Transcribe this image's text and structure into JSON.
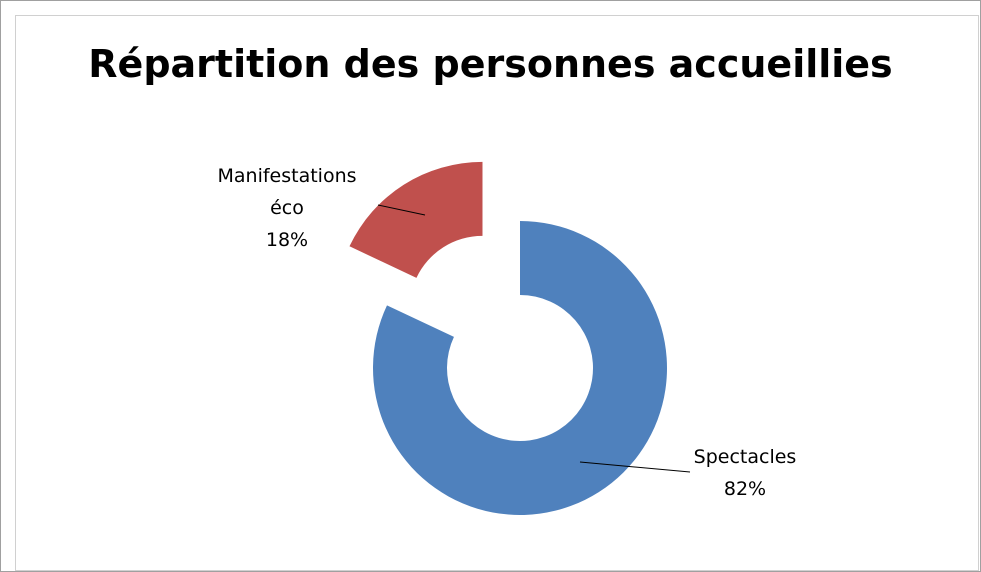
{
  "chart_data": {
    "type": "donut",
    "title": "Répartition des personnes accueillies",
    "categories": [
      "Spectacles",
      "Manifestations éco"
    ],
    "values": [
      82,
      18
    ],
    "value_labels": [
      "82%",
      "18%"
    ],
    "colors": [
      "#4f81bd",
      "#c0504d"
    ]
  }
}
